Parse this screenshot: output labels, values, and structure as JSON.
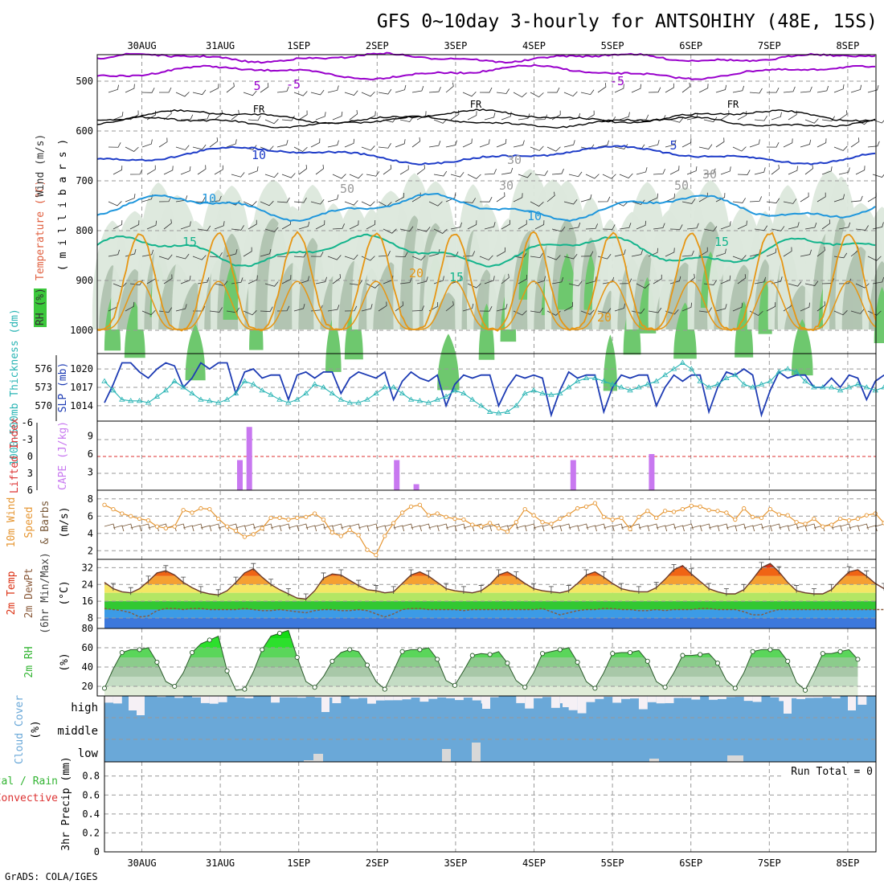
{
  "title": "GFS 0~10day 3-hourly for ANTSOHIHY (48E, 15S)",
  "credit": "GrADS: COLA/IGES",
  "run_total_label": "Run Total = 0",
  "colors": {
    "purple": "#9900cc",
    "blue": "#1e3cc8",
    "cyan": "#1e96dc",
    "teal": "#14b48c",
    "orange": "#e69614",
    "magenta": "#dc1e96",
    "rh_dark": "#a0b4a0",
    "rh_green": "#3cc83c",
    "slp": "#1e3cb4",
    "thick": "#28b4b4",
    "cape": "#c878f0",
    "li": "#dc3232",
    "wind10": "#e69632",
    "cloud": "#6aa8d8",
    "precip_label": "#32b432"
  },
  "chart_data": [
    {
      "type": "contour",
      "name": "upper-air",
      "x": [
        "30AUG",
        "31AUG",
        "1SEP",
        "2SEP",
        "3SEP",
        "4SEP",
        "5SEP",
        "6SEP",
        "7SEP",
        "8SEP"
      ],
      "ylabel_parts": [
        "RH (%)",
        "Temperature (°C)",
        "Wind (m/s)",
        "(millibars)"
      ],
      "ylabel_vert": "( m i l l i b a r s )",
      "yticks": [
        "500",
        "600",
        "700",
        "800",
        "900",
        "1000"
      ],
      "ylim": [
        450,
        1000
      ],
      "contour_labels": [
        "5",
        "-5",
        "FR",
        "FR",
        "FR",
        "-5",
        "5",
        "10",
        "10",
        "15",
        "15",
        "15",
        "20",
        "20",
        "10",
        "30",
        "30",
        "50",
        "50",
        "30"
      ]
    },
    {
      "type": "line",
      "name": "slp-thickness",
      "ylabel_left": "1000-500mb Thickness (dm)",
      "ylabel_right": "SLP (mb)",
      "yticks_left": [
        "576",
        "573",
        "570"
      ],
      "yticks_right": [
        "1020",
        "1017",
        "1014"
      ],
      "ylim_slp": [
        1011.5,
        1022.5
      ],
      "ylim_thick": [
        567.5,
        578.5
      ],
      "series": [
        {
          "name": "SLP",
          "values": [
            1014.5,
            1017.5,
            1021,
            1021,
            1019.5,
            1018.5,
            1020,
            1021,
            1020.5,
            1017,
            1018.5,
            1021,
            1020,
            1021,
            1021,
            1016,
            1019.5,
            1020,
            1018.5,
            1019,
            1019,
            1015,
            1019,
            1019.5,
            1018.5,
            1019.5,
            1019.5,
            1016,
            1018.5,
            1019.5,
            1019,
            1018.5,
            1019.5,
            1015,
            1018,
            1019.5,
            1018.5,
            1018,
            1019,
            1014,
            1017.5,
            1019,
            1018.5,
            1019,
            1019,
            1014,
            1017,
            1019,
            1018.5,
            1019,
            1018.5,
            1012.5,
            1016.5,
            1019.5,
            1018.5,
            1019,
            1019,
            1013,
            1017,
            1019,
            1018.5,
            1019,
            1019,
            1014,
            1017,
            1019,
            1018,
            1019,
            1019,
            1013,
            1017,
            1019.5,
            1019,
            1020,
            1019,
            1012.5,
            1016.5,
            1019.5,
            1018.5,
            1019,
            1019,
            1017,
            1017,
            1018.5,
            1017,
            1019,
            1018.5,
            1015,
            1018,
            1019
          ]
        },
        {
          "name": "Thickness",
          "values": [
            574,
            572.5,
            571,
            570.8,
            570.8,
            570.5,
            571.5,
            572.5,
            574,
            573,
            572,
            571,
            570.8,
            570.5,
            571,
            572,
            574,
            573.5,
            572.5,
            571.8,
            571,
            570.5,
            571,
            572,
            573.5,
            573,
            572,
            571,
            570.5,
            570.5,
            571,
            572,
            573,
            573,
            572,
            571,
            570.8,
            570.5,
            571,
            571.5,
            572.5,
            572,
            571,
            570,
            569,
            568.8,
            569,
            570,
            572,
            572.5,
            572,
            571.8,
            572,
            573,
            574,
            574.5,
            574.5,
            574,
            573.5,
            573,
            572.5,
            573,
            573.5,
            574,
            575,
            576,
            577,
            576,
            574,
            573,
            573.5,
            574.5,
            575,
            573.5,
            573,
            573.5,
            574,
            575.5,
            576,
            575.5,
            574,
            573,
            573,
            573,
            572.5,
            573,
            573.5,
            573,
            572.5,
            573
          ]
        }
      ]
    },
    {
      "type": "bar",
      "name": "cape-lifted-index",
      "ylabel_left": "Lifted Index",
      "ylabel_right": "CAPE (J/kg)",
      "yticks_left": [
        "-6",
        "-3",
        "0",
        "3",
        "6"
      ],
      "yticks_right": [
        "9",
        "6",
        "3"
      ],
      "cape_unit_ticks": [
        9,
        6,
        3
      ],
      "li_zero": 0,
      "bars": [
        {
          "day": 1.25,
          "value": 5
        },
        {
          "day": 1.37,
          "value": 10.5
        },
        {
          "day": 3.25,
          "value": 5
        },
        {
          "day": 3.5,
          "value": 1
        },
        {
          "day": 5.5,
          "value": 5
        },
        {
          "day": 6.5,
          "value": 6
        }
      ]
    },
    {
      "type": "line",
      "name": "wind-10m",
      "ylabel": [
        "10m Wind",
        "Speed",
        "& Barbs",
        "(m/s)"
      ],
      "yticks": [
        "8",
        "6",
        "4",
        "2"
      ],
      "ylim": [
        1,
        9
      ],
      "values": [
        7.3,
        6.8,
        6.3,
        6,
        5.7,
        5.5,
        4.8,
        4.6,
        4.8,
        6.7,
        6.4,
        6.9,
        6.8,
        5.7,
        4.8,
        4.3,
        3.6,
        3.9,
        4.6,
        5.8,
        5.8,
        5.6,
        5.8,
        5.9,
        6.3,
        5.6,
        4.1,
        3.7,
        4.4,
        3.8,
        2.1,
        1.5,
        3.7,
        5.2,
        6.4,
        7.1,
        7.3,
        6.1,
        6.3,
        5.9,
        5.7,
        5.6,
        5,
        4.8,
        5.2,
        4.6,
        4.2,
        5.3,
        6.8,
        6.1,
        5.3,
        5.1,
        5.7,
        6.2,
        6.9,
        7.1,
        7.5,
        5.9,
        5.6,
        5.8,
        4.5,
        5.9,
        6.6,
        5.8,
        6.6,
        6.5,
        6.8,
        7.2,
        7.1,
        6.7,
        6.6,
        6.4,
        5.6,
        6.9,
        5.9,
        5.8,
        6.8,
        6.2,
        6.1,
        5.3,
        5.1,
        5.7,
        4.8,
        5,
        5.7,
        5.5,
        5.7,
        6.1,
        6.3,
        5.2,
        5.7
      ]
    },
    {
      "type": "area",
      "name": "temp-2m",
      "ylabel": [
        "2m Temp",
        "2m DewPt",
        "(6hr Min/Max)",
        "(°C)"
      ],
      "yticks": [
        "32",
        "24",
        "16",
        "8"
      ],
      "ylim": [
        3,
        36
      ],
      "temp": [
        25,
        22,
        20.5,
        20,
        22,
        25.5,
        29.5,
        30.5,
        28.5,
        25,
        22.5,
        20.5,
        19.5,
        19,
        21,
        25,
        29.5,
        31.5,
        27.5,
        24,
        21.5,
        19.5,
        17.5,
        17,
        21,
        27,
        29,
        28.5,
        26,
        23.5,
        21.5,
        21,
        20,
        20.5,
        24.5,
        28.5,
        30,
        28,
        25,
        22,
        21,
        20.5,
        20,
        21,
        24,
        28.5,
        30,
        27.5,
        24.5,
        22,
        21,
        20.5,
        20,
        21,
        24.5,
        28.5,
        30,
        27.5,
        24.5,
        22,
        21,
        20.5,
        20.5,
        22.5,
        26.5,
        31,
        33,
        29,
        25.5,
        22,
        20.5,
        19.5,
        19.5,
        21.5,
        26.5,
        32,
        34,
        30,
        25,
        21,
        20,
        19.5,
        19.5,
        21.5,
        26,
        30,
        31,
        28,
        24.5,
        22,
        28
      ],
      "dewpt": [
        12.5,
        12,
        11.5,
        10.5,
        8.5,
        9,
        11.5,
        12.5,
        12.5,
        12,
        12.5,
        12.5,
        12,
        12,
        12,
        12,
        12.5,
        12,
        11.5,
        11.5,
        12,
        11.5,
        11,
        10.5,
        11.5,
        12,
        12,
        11.5,
        11.5,
        12,
        11.5,
        10,
        8.5,
        10,
        12,
        12.5,
        12.5,
        12,
        12,
        12,
        12,
        11.5,
        12,
        12,
        12,
        12,
        12,
        12,
        12,
        12,
        12.5,
        11,
        9.5,
        10.5,
        11.5,
        12,
        12,
        12.5,
        12.5,
        12,
        12,
        11.5,
        11.5,
        12,
        11.5,
        12,
        12,
        12,
        12.5,
        12.5,
        12,
        12,
        12,
        11,
        9.5,
        9.5,
        11,
        12,
        12,
        12,
        12,
        12,
        12,
        12,
        12,
        12,
        12,
        12,
        12,
        12,
        12
      ]
    },
    {
      "type": "area",
      "name": "rh-2m",
      "ylabel": [
        "2m RH",
        "(%)"
      ],
      "yticks": [
        "80",
        "60",
        "40",
        "20"
      ],
      "ylim": [
        10,
        80
      ],
      "values": [
        18,
        38,
        55,
        58,
        58,
        60,
        45,
        25,
        20,
        34,
        55,
        64,
        68,
        72,
        36,
        16,
        17,
        35,
        58,
        72,
        75,
        78,
        50,
        25,
        19,
        30,
        46,
        55,
        58,
        56,
        42,
        25,
        17,
        36,
        56,
        58,
        58,
        60,
        48,
        26,
        21,
        36,
        52,
        54,
        53,
        56,
        44,
        26,
        19,
        34,
        54,
        56,
        58,
        60,
        45,
        25,
        18,
        34,
        54,
        55,
        55,
        57,
        46,
        25,
        19,
        34,
        52,
        52,
        53,
        54,
        44,
        26,
        18,
        34,
        56,
        58,
        58,
        58,
        46,
        24,
        16,
        34,
        54,
        54,
        56,
        58,
        48
      ]
    },
    {
      "type": "bar",
      "name": "cloud-cover",
      "ylabel": [
        "Cloud Cover",
        "(%)"
      ],
      "layer_labels": [
        "high",
        "middle",
        "low"
      ]
    },
    {
      "type": "bar",
      "name": "precip-3hr",
      "ylabel_left": [
        "Total / Rain",
        "Convective"
      ],
      "ylabel_axis": "3hr Precip (mm)",
      "yticks": [
        "0.8",
        "0.6",
        "0.4",
        "0.2",
        "0"
      ],
      "ylim": [
        0,
        0.95
      ],
      "values": []
    }
  ]
}
